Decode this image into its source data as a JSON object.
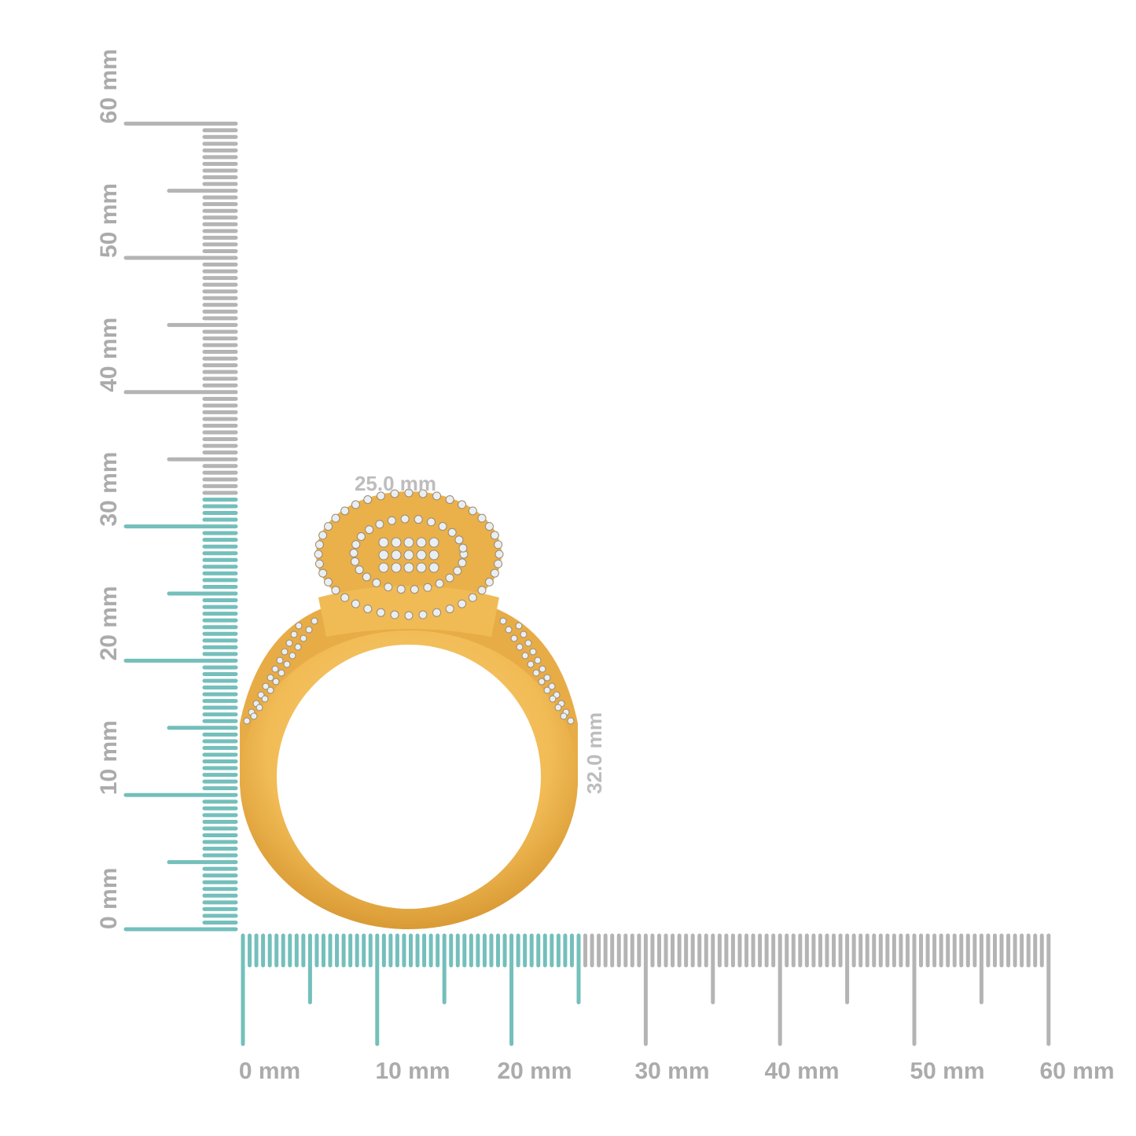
{
  "rulers": {
    "unit": "mm",
    "max_mm": 60,
    "major_labels": [
      "0 mm",
      "10 mm",
      "20 mm",
      "30 mm",
      "40 mm",
      "50 mm",
      "60 mm"
    ],
    "highlight_color": "#74bfbb",
    "base_color": "#b4b4b4",
    "horizontal_highlight_mm": 25,
    "vertical_highlight_mm": 32
  },
  "dimensions": {
    "width_label": "25.0 mm",
    "height_label": "32.0 mm"
  },
  "product": {
    "metal_color": "#f3c05a",
    "stone_color": "#e9eef2"
  }
}
